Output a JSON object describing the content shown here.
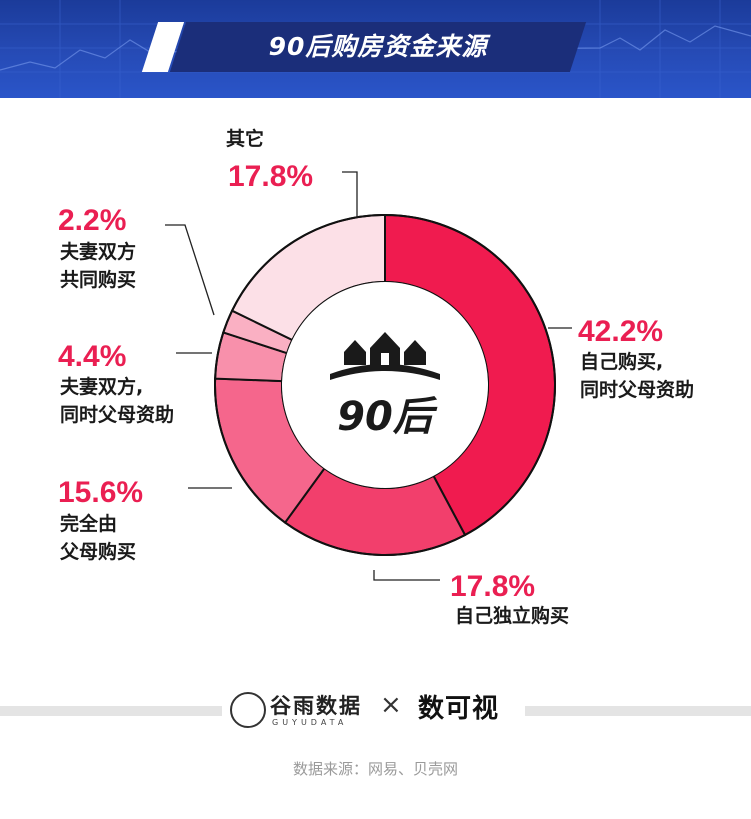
{
  "header": {
    "title": "90后购房资金来源"
  },
  "center": {
    "label": "90后"
  },
  "chart_data": {
    "type": "pie",
    "subtype": "donut",
    "title": "90后购房资金来源",
    "start_angle_deg": 0,
    "direction": "clockwise",
    "slices": [
      {
        "label": "自己购买，同时父母资助",
        "label_lines": [
          "自己购买,",
          "同时父母资助"
        ],
        "percent_text": "42.2%",
        "value": 42.2,
        "color": "#f01b4f"
      },
      {
        "label": "自己独立购买",
        "label_lines": [
          "自己独立购买"
        ],
        "percent_text": "17.8%",
        "value": 17.8,
        "color": "#f23f6c"
      },
      {
        "label": "完全由父母购买",
        "label_lines": [
          "完全由",
          "父母购买"
        ],
        "percent_text": "15.6%",
        "value": 15.6,
        "color": "#f5668c"
      },
      {
        "label": "夫妻双方，同时父母资助",
        "label_lines": [
          "夫妻双方,",
          "同时父母资助"
        ],
        "percent_text": "4.4%",
        "value": 4.4,
        "color": "#f890ab"
      },
      {
        "label": "夫妻双方共同购买",
        "label_lines": [
          "夫妻双方",
          "共同购买"
        ],
        "percent_text": "2.2%",
        "value": 2.2,
        "color": "#fab0c3"
      },
      {
        "label": "其它",
        "label_lines": [
          "其它"
        ],
        "percent_text": "17.8%",
        "value": 17.8,
        "color": "#fce0e7"
      }
    ]
  },
  "footer": {
    "brand1_cn": "谷雨数据",
    "brand1_en": "GUYUDATA",
    "separator": "×",
    "brand2": "数可视",
    "source": "数据来源：网易、贝壳网"
  }
}
